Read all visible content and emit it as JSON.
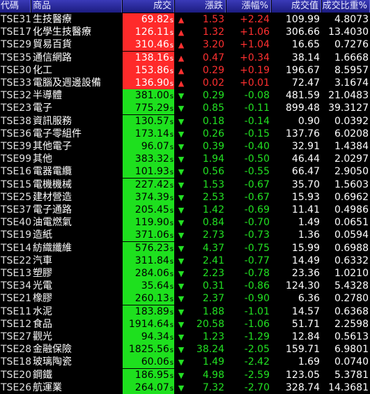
{
  "header": {
    "code": "代碼",
    "name": "商品",
    "price": "成交",
    "change": "漲跌",
    "percent": "漲幅%",
    "volume": "成交值",
    "share": "成交比重%"
  },
  "rows": [
    {
      "code": "TSE31",
      "name": "生技醫療",
      "price": "69.82",
      "suffix": "s",
      "arrow": "▲",
      "change": "1.53",
      "percent": "+2.24",
      "volume": "109.99",
      "share": "4.8073",
      "dir": "up"
    },
    {
      "code": "TSE17",
      "name": "化學生技醫療",
      "price": "126.11",
      "suffix": "s",
      "arrow": "▲",
      "change": "1.32",
      "percent": "+1.06",
      "volume": "306.66",
      "share": "13.4030",
      "dir": "up"
    },
    {
      "code": "TSE29",
      "name": "貿易百貨",
      "price": "310.46",
      "suffix": "s",
      "arrow": "▲",
      "change": "3.20",
      "percent": "+1.04",
      "volume": "16.65",
      "share": "0.7276",
      "dir": "up"
    },
    {
      "code": "TSE35",
      "name": "通信網路",
      "price": "138.16",
      "suffix": "s",
      "arrow": "▲",
      "change": "0.47",
      "percent": "+0.34",
      "volume": "38.14",
      "share": "1.6668",
      "dir": "up"
    },
    {
      "code": "TSE30",
      "name": "化工",
      "price": "153.86",
      "suffix": "s",
      "arrow": "▲",
      "change": "0.29",
      "percent": "+0.19",
      "volume": "196.67",
      "share": "8.5957",
      "dir": "up"
    },
    {
      "code": "TSE33",
      "name": "電腦及週邊設備",
      "price": "136.90",
      "suffix": "s",
      "arrow": "▲",
      "change": "0.02",
      "percent": "+0.01",
      "volume": "72.47",
      "share": "3.1674",
      "dir": "up"
    },
    {
      "code": "TSE32",
      "name": "半導體",
      "price": "381.00",
      "suffix": "s",
      "arrow": "▼",
      "change": "0.29",
      "percent": "-0.08",
      "volume": "481.59",
      "share": "21.0483",
      "dir": "down"
    },
    {
      "code": "TSE23",
      "name": "電子",
      "price": "775.29",
      "suffix": "s",
      "arrow": "▼",
      "change": "0.85",
      "percent": "-0.11",
      "volume": "899.48",
      "share": "39.3127",
      "dir": "down"
    },
    {
      "code": "TSE38",
      "name": "資訊服務",
      "price": "130.57",
      "suffix": "s",
      "arrow": "▼",
      "change": "0.18",
      "percent": "-0.14",
      "volume": "0.90",
      "share": "0.0392",
      "dir": "down"
    },
    {
      "code": "TSE36",
      "name": "電子零組件",
      "price": "173.14",
      "suffix": "s",
      "arrow": "▼",
      "change": "0.26",
      "percent": "-0.15",
      "volume": "137.76",
      "share": "6.0208",
      "dir": "down"
    },
    {
      "code": "TSE39",
      "name": "其他電子",
      "price": "96.07",
      "suffix": "s",
      "arrow": "▼",
      "change": "0.39",
      "percent": "-0.40",
      "volume": "32.91",
      "share": "1.4384",
      "dir": "down"
    },
    {
      "code": "TSE99",
      "name": "其他",
      "price": "383.32",
      "suffix": "s",
      "arrow": "▼",
      "change": "1.94",
      "percent": "-0.50",
      "volume": "46.44",
      "share": "2.0297",
      "dir": "down"
    },
    {
      "code": "TSE16",
      "name": "電器電纜",
      "price": "101.93",
      "suffix": "s",
      "arrow": "▼",
      "change": "0.56",
      "percent": "-0.55",
      "volume": "66.47",
      "share": "2.9050",
      "dir": "down"
    },
    {
      "code": "TSE15",
      "name": "電機機械",
      "price": "227.42",
      "suffix": "s",
      "arrow": "▼",
      "change": "1.53",
      "percent": "-0.67",
      "volume": "35.70",
      "share": "1.5603",
      "dir": "down"
    },
    {
      "code": "TSE25",
      "name": "建材營造",
      "price": "374.39",
      "suffix": "s",
      "arrow": "▼",
      "change": "2.53",
      "percent": "-0.67",
      "volume": "15.93",
      "share": "0.6962",
      "dir": "down"
    },
    {
      "code": "TSE37",
      "name": "電子通路",
      "price": "205.45",
      "suffix": "s",
      "arrow": "▼",
      "change": "1.42",
      "percent": "-0.69",
      "volume": "11.41",
      "share": "0.4986",
      "dir": "down"
    },
    {
      "code": "TSE40",
      "name": "油電燃氣",
      "price": "119.90",
      "suffix": "s",
      "arrow": "▼",
      "change": "0.84",
      "percent": "-0.70",
      "volume": "1.49",
      "share": "0.0651",
      "dir": "down"
    },
    {
      "code": "TSE19",
      "name": "造紙",
      "price": "371.06",
      "suffix": "s",
      "arrow": "▼",
      "change": "2.73",
      "percent": "-0.73",
      "volume": "1.36",
      "share": "0.0594",
      "dir": "down"
    },
    {
      "code": "TSE14",
      "name": "紡織纖維",
      "price": "576.23",
      "suffix": "s",
      "arrow": "▼",
      "change": "4.37",
      "percent": "-0.75",
      "volume": "15.99",
      "share": "0.6988",
      "dir": "down"
    },
    {
      "code": "TSE22",
      "name": "汽車",
      "price": "311.84",
      "suffix": "s",
      "arrow": "▼",
      "change": "2.41",
      "percent": "-0.77",
      "volume": "14.49",
      "share": "0.6332",
      "dir": "down"
    },
    {
      "code": "TSE13",
      "name": "塑膠",
      "price": "284.06",
      "suffix": "s",
      "arrow": "▼",
      "change": "2.23",
      "percent": "-0.78",
      "volume": "23.36",
      "share": "1.0210",
      "dir": "down"
    },
    {
      "code": "TSE34",
      "name": "光電",
      "price": "35.64",
      "suffix": "s",
      "arrow": "▼",
      "change": "0.31",
      "percent": "-0.86",
      "volume": "124.30",
      "share": "5.4328",
      "dir": "down"
    },
    {
      "code": "TSE21",
      "name": "橡膠",
      "price": "260.13",
      "suffix": "s",
      "arrow": "▼",
      "change": "2.37",
      "percent": "-0.90",
      "volume": "6.36",
      "share": "0.2780",
      "dir": "down"
    },
    {
      "code": "TSE11",
      "name": "水泥",
      "price": "183.89",
      "suffix": "s",
      "arrow": "▼",
      "change": "1.88",
      "percent": "-1.01",
      "volume": "14.57",
      "share": "0.6368",
      "dir": "down"
    },
    {
      "code": "TSE12",
      "name": "食品",
      "price": "1914.64",
      "suffix": "s",
      "arrow": "▼",
      "change": "20.58",
      "percent": "-1.06",
      "volume": "51.71",
      "share": "2.2598",
      "dir": "down"
    },
    {
      "code": "TSE27",
      "name": "觀光",
      "price": "94.34",
      "suffix": "s",
      "arrow": "▼",
      "change": "1.23",
      "percent": "-1.29",
      "volume": "12.84",
      "share": "0.5613",
      "dir": "down"
    },
    {
      "code": "TSE28",
      "name": "金融保險",
      "price": "1825.56",
      "suffix": "s",
      "arrow": "▼",
      "change": "38.24",
      "percent": "-2.05",
      "volume": "159.71",
      "share": "6.9801",
      "dir": "down"
    },
    {
      "code": "TSE18",
      "name": "玻璃陶瓷",
      "price": "60.06",
      "suffix": "s",
      "arrow": "▼",
      "change": "1.49",
      "percent": "-2.42",
      "volume": "1.69",
      "share": "0.0740",
      "dir": "down"
    },
    {
      "code": "TSE20",
      "name": "鋼鐵",
      "price": "186.95",
      "suffix": "s",
      "arrow": "▼",
      "change": "4.98",
      "percent": "-2.59",
      "volume": "123.05",
      "share": "5.3781",
      "dir": "down"
    },
    {
      "code": "TSE26",
      "name": "航運業",
      "price": "264.07",
      "suffix": "s",
      "arrow": "▼",
      "change": "7.32",
      "percent": "-2.70",
      "volume": "328.74",
      "share": "14.3681",
      "dir": "down"
    }
  ],
  "colors": {
    "up": "#ff2a2a",
    "down": "#1ee01e",
    "background": "#000000",
    "header": "#2828a0"
  }
}
